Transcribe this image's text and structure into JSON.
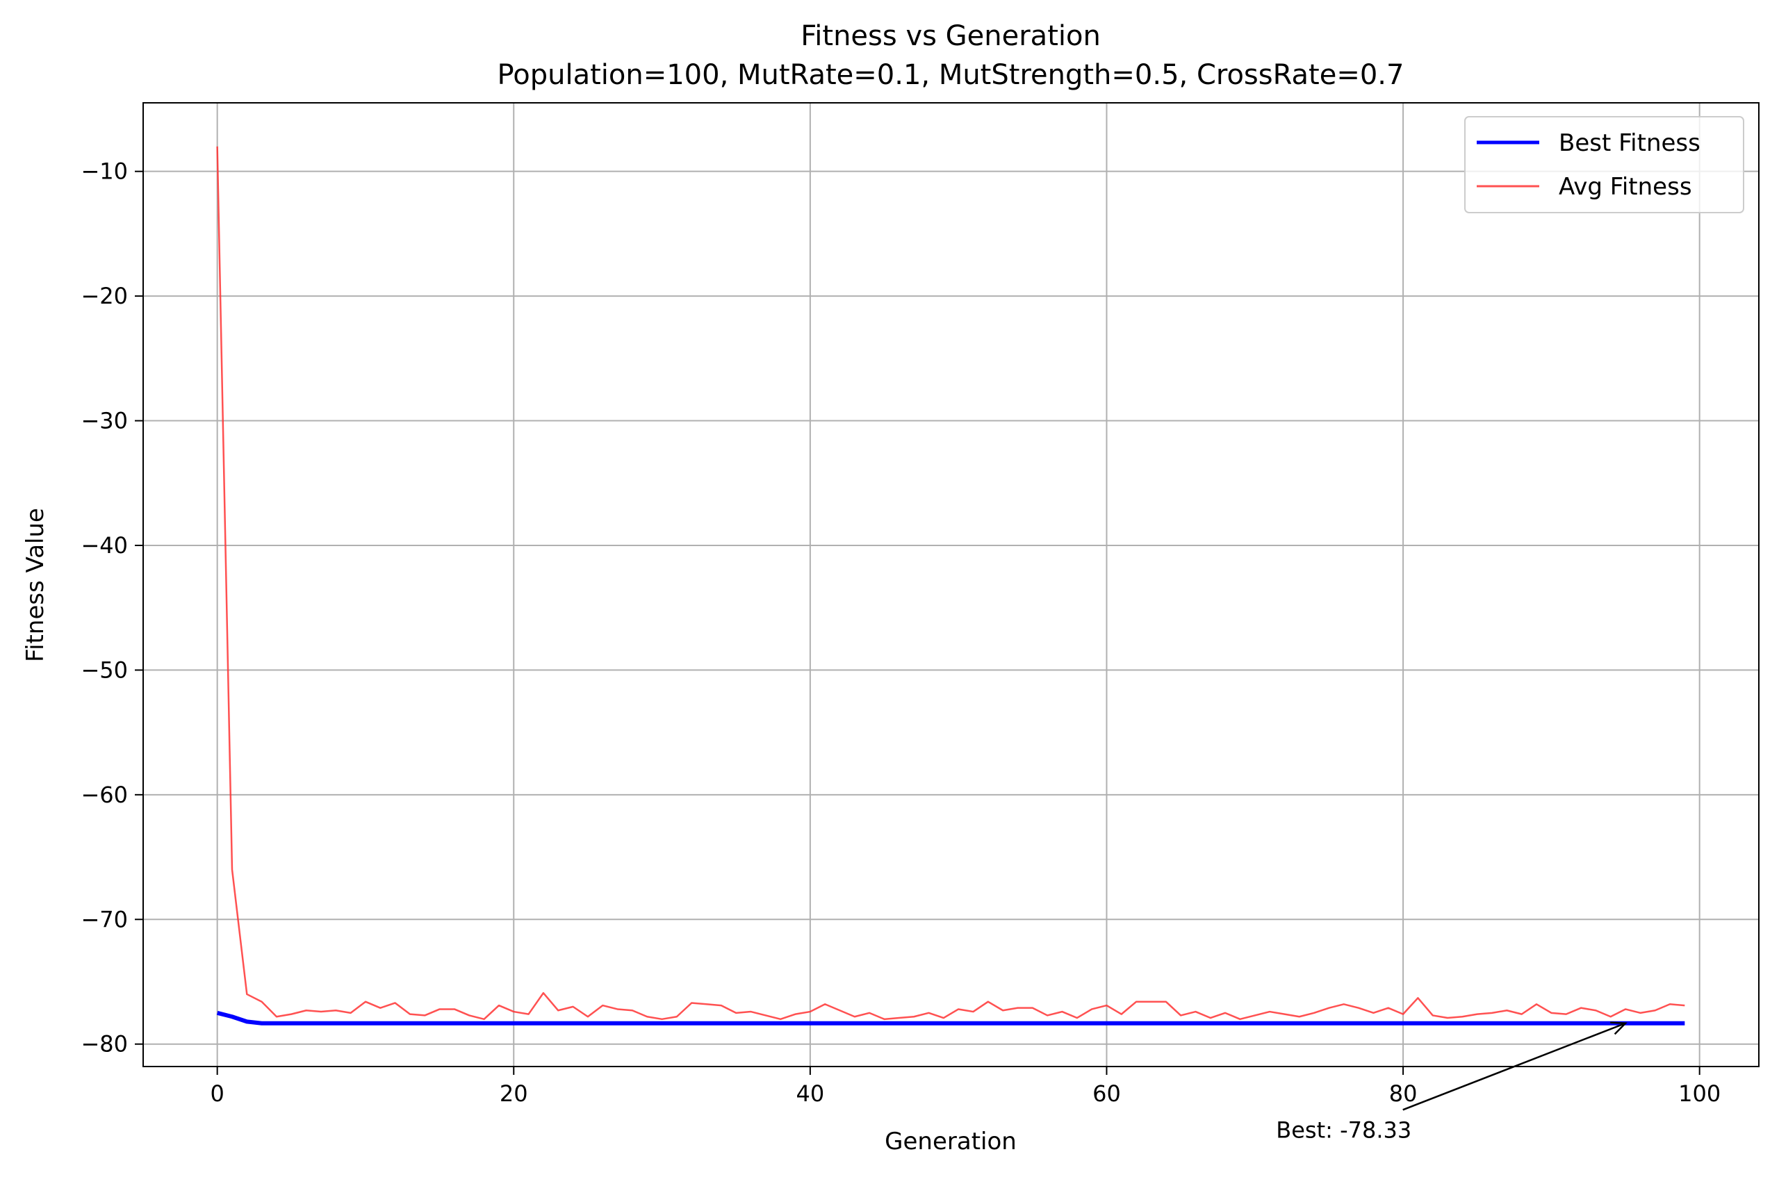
{
  "chart_data": {
    "type": "line",
    "title": "Fitness vs Generation",
    "subtitle": "Population=100, MutRate=0.1, MutStrength=0.5, CrossRate=0.7",
    "xlabel": "Generation",
    "ylabel": "Fitness Value",
    "xlim": [
      -5,
      104
    ],
    "ylim": [
      -81.8,
      -4.5
    ],
    "xticks": [
      0,
      20,
      40,
      60,
      80,
      100
    ],
    "xtick_labels": [
      "0",
      "20",
      "40",
      "60",
      "80",
      "100"
    ],
    "yticks": [
      -10,
      -20,
      -30,
      -40,
      -50,
      -60,
      -70,
      -80
    ],
    "ytick_labels": [
      "−10",
      "−20",
      "−30",
      "−40",
      "−50",
      "−60",
      "−70",
      "−80"
    ],
    "grid": true,
    "legend_position": "top-right",
    "series": [
      {
        "name": "Best Fitness",
        "color": "#0000ff",
        "values": [
          -77.5,
          -77.8,
          -78.2,
          -78.33,
          -78.33,
          -78.33,
          -78.33,
          -78.33,
          -78.33,
          -78.33,
          -78.33,
          -78.33,
          -78.33,
          -78.33,
          -78.33,
          -78.33,
          -78.33,
          -78.33,
          -78.33,
          -78.33,
          -78.33,
          -78.33,
          -78.33,
          -78.33,
          -78.33,
          -78.33,
          -78.33,
          -78.33,
          -78.33,
          -78.33,
          -78.33,
          -78.33,
          -78.33,
          -78.33,
          -78.33,
          -78.33,
          -78.33,
          -78.33,
          -78.33,
          -78.33,
          -78.33,
          -78.33,
          -78.33,
          -78.33,
          -78.33,
          -78.33,
          -78.33,
          -78.33,
          -78.33,
          -78.33,
          -78.33,
          -78.33,
          -78.33,
          -78.33,
          -78.33,
          -78.33,
          -78.33,
          -78.33,
          -78.33,
          -78.33,
          -78.33,
          -78.33,
          -78.33,
          -78.33,
          -78.33,
          -78.33,
          -78.33,
          -78.33,
          -78.33,
          -78.33,
          -78.33,
          -78.33,
          -78.33,
          -78.33,
          -78.33,
          -78.33,
          -78.33,
          -78.33,
          -78.33,
          -78.33,
          -78.33,
          -78.33,
          -78.33,
          -78.33,
          -78.33,
          -78.33,
          -78.33,
          -78.33,
          -78.33,
          -78.33,
          -78.33,
          -78.33,
          -78.33,
          -78.33,
          -78.33,
          -78.33,
          -78.33,
          -78.33,
          -78.33,
          -78.33
        ]
      },
      {
        "name": "Avg Fitness",
        "color": "#ff3333",
        "values": [
          -8.0,
          -66.0,
          -76.0,
          -76.6,
          -77.8,
          -77.6,
          -77.3,
          -77.4,
          -77.3,
          -77.5,
          -76.6,
          -77.1,
          -76.7,
          -77.6,
          -77.7,
          -77.2,
          -77.2,
          -77.7,
          -78.0,
          -76.9,
          -77.4,
          -77.6,
          -75.9,
          -77.3,
          -77.0,
          -77.8,
          -76.9,
          -77.2,
          -77.3,
          -77.8,
          -78.0,
          -77.8,
          -76.7,
          -76.8,
          -76.9,
          -77.5,
          -77.4,
          -77.7,
          -78.0,
          -77.6,
          -77.4,
          -76.8,
          -77.3,
          -77.8,
          -77.5,
          -78.0,
          -77.9,
          -77.8,
          -77.5,
          -77.9,
          -77.2,
          -77.4,
          -76.6,
          -77.3,
          -77.1,
          -77.1,
          -77.7,
          -77.4,
          -77.9,
          -77.2,
          -76.9,
          -77.6,
          -76.6,
          -76.6,
          -76.6,
          -77.7,
          -77.4,
          -77.9,
          -77.5,
          -78.0,
          -77.7,
          -77.4,
          -77.6,
          -77.8,
          -77.5,
          -77.1,
          -76.8,
          -77.1,
          -77.5,
          -77.1,
          -77.6,
          -76.3,
          -77.7,
          -77.9,
          -77.8,
          -77.6,
          -77.5,
          -77.3,
          -77.6,
          -76.8,
          -77.5,
          -77.6,
          -77.1,
          -77.3,
          -77.8,
          -77.2,
          -77.5,
          -77.3,
          -76.8,
          -76.9
        ]
      }
    ],
    "annotations": [
      {
        "text": "Best: -78.33",
        "point": [
          95,
          -78.33
        ],
        "text_anchor": [
          76,
          -87.5
        ]
      }
    ]
  }
}
